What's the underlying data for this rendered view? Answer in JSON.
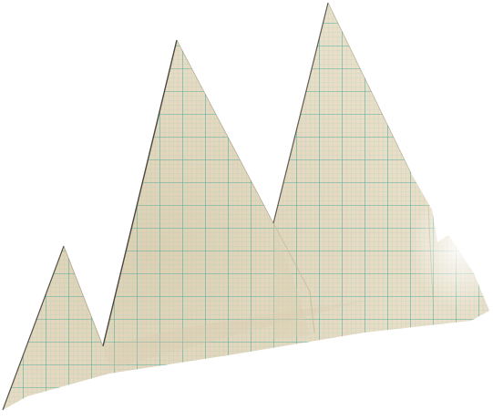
{
  "scene": {
    "subject": "graph-paper-mountains-cutout",
    "background_color": "#ffffff",
    "paper_color": "#e9dfc8",
    "paper_shade_color": "#d9cdb0",
    "grid_minor_color": "#9cc9c0",
    "grid_major_color": "#3aa69a",
    "edge_color": "#2f2a22",
    "peak_count": 3
  }
}
